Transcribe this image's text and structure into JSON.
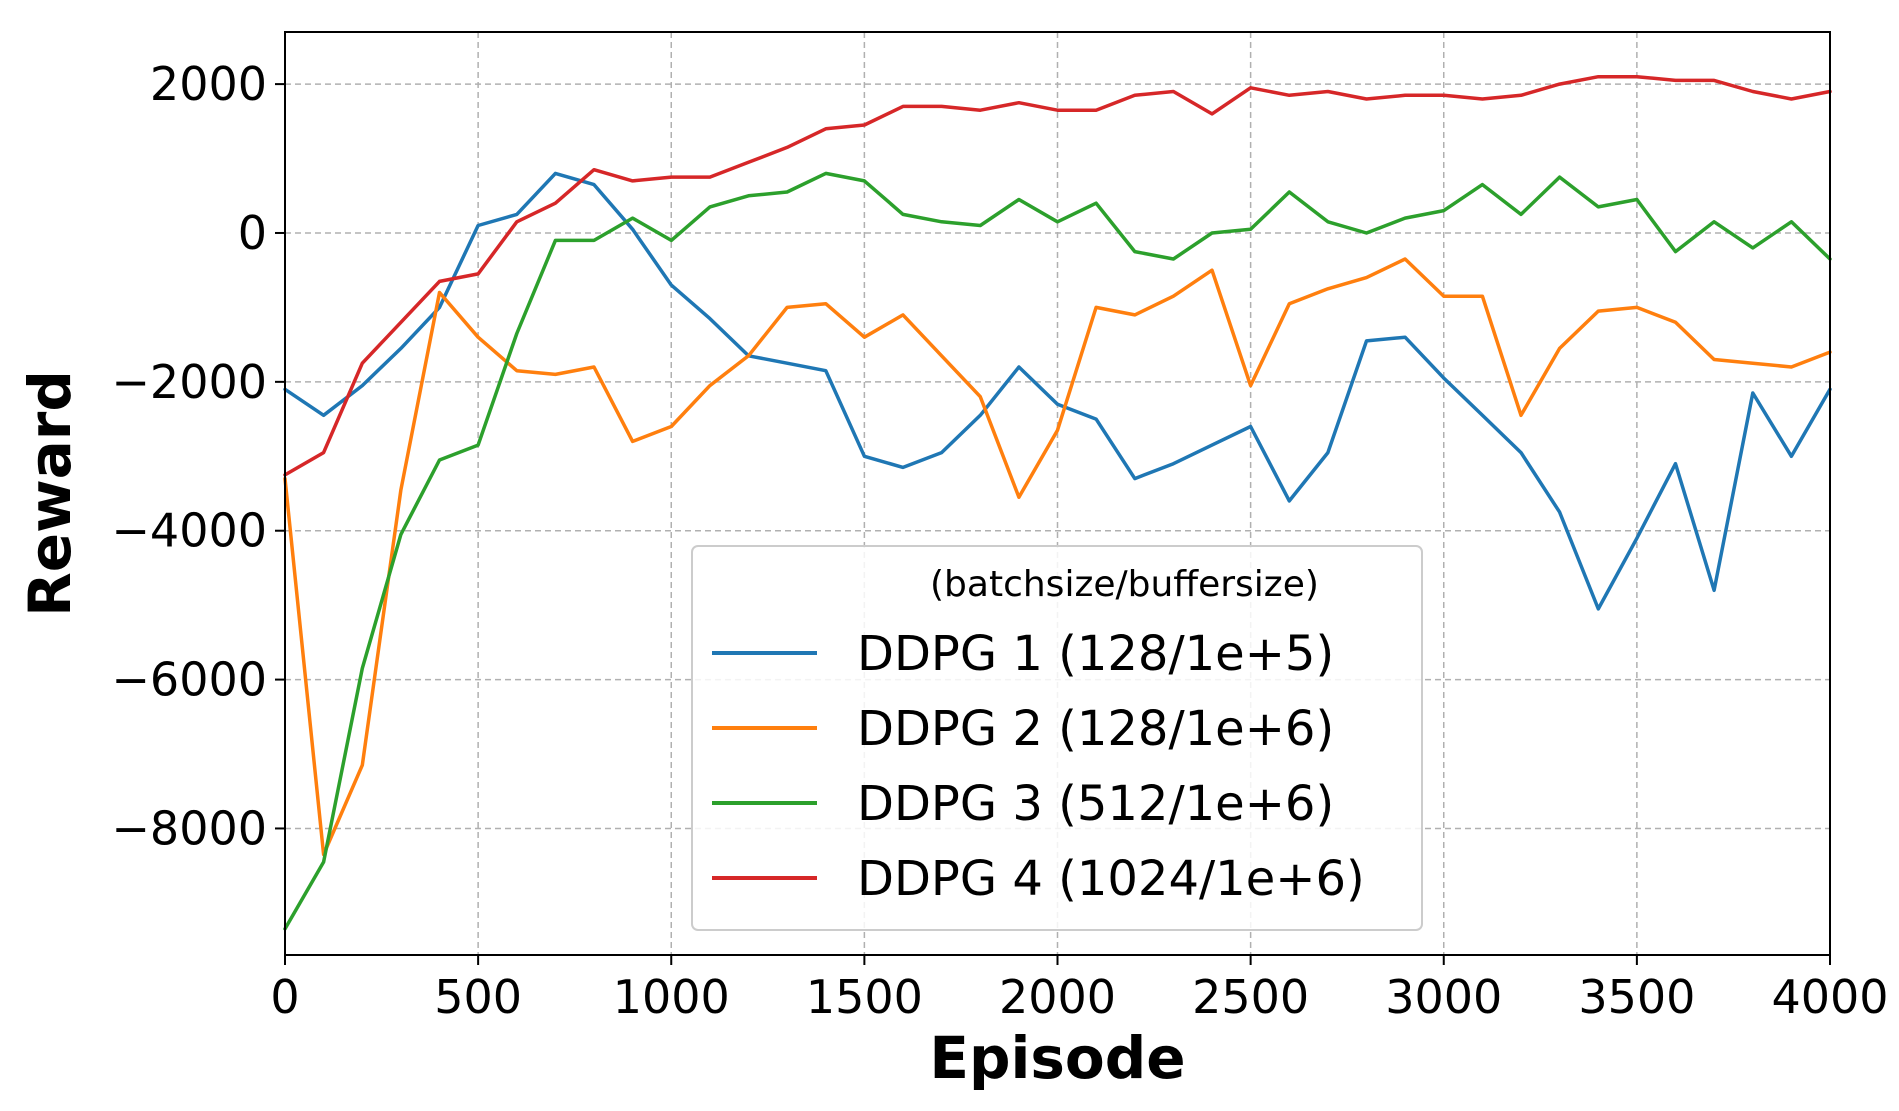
{
  "chart_data": {
    "type": "line",
    "title": "",
    "xlabel": "Episode",
    "ylabel": "Reward",
    "xlim": [
      0,
      4000
    ],
    "ylim": [
      -9700,
      2700
    ],
    "grid": true,
    "x_ticks": [
      0,
      500,
      1000,
      1500,
      2000,
      2500,
      3000,
      3500,
      4000
    ],
    "y_ticks": [
      -8000,
      -6000,
      -4000,
      -2000,
      0,
      2000
    ],
    "x_tick_labels": [
      "0",
      "500",
      "1000",
      "1500",
      "2000",
      "2500",
      "3000",
      "3500",
      "4000"
    ],
    "y_tick_labels": [
      "−8000",
      "−6000",
      "−4000",
      "−2000",
      "0",
      "2000"
    ],
    "legend": {
      "title": "(batchsize/buffersize)",
      "position": "lower-center"
    },
    "x": [
      0,
      100,
      200,
      300,
      400,
      500,
      600,
      700,
      800,
      900,
      1000,
      1100,
      1200,
      1300,
      1400,
      1500,
      1600,
      1700,
      1800,
      1900,
      2000,
      2100,
      2200,
      2300,
      2400,
      2500,
      2600,
      2700,
      2800,
      2900,
      3000,
      3100,
      3200,
      3300,
      3400,
      3500,
      3600,
      3700,
      3800,
      3900,
      4000
    ],
    "series": [
      {
        "name": "DDPG 1 (128/1e+5)",
        "color": "#1f77b4",
        "values": [
          -2100,
          -2450,
          -2050,
          -1550,
          -1000,
          100,
          250,
          800,
          650,
          50,
          -700,
          -1150,
          -1650,
          -1750,
          -1850,
          -3000,
          -3150,
          -2950,
          -2450,
          -1800,
          -2300,
          -2500,
          -3300,
          -3100,
          -2850,
          -2600,
          -3600,
          -2950,
          -1450,
          -1400,
          -1950,
          -2450,
          -2950,
          -3750,
          -5050,
          -4100,
          -3100,
          -4800,
          -2150,
          -3000,
          -2100
        ]
      },
      {
        "name": "DDPG 2 (128/1e+6)",
        "color": "#ff7f0e",
        "values": [
          -3300,
          -8350,
          -7150,
          -3450,
          -800,
          -1400,
          -1850,
          -1900,
          -1800,
          -2800,
          -2600,
          -2050,
          -1650,
          -1000,
          -950,
          -1400,
          -1100,
          -1650,
          -2200,
          -3550,
          -2650,
          -1000,
          -1100,
          -850,
          -500,
          -2050,
          -950,
          -750,
          -600,
          -350,
          -850,
          -850,
          -2450,
          -1550,
          -1050,
          -1000,
          -1200,
          -1700,
          -1750,
          -1800,
          -1600
        ]
      },
      {
        "name": "DDPG 3 (512/1e+6)",
        "color": "#2ca02c",
        "values": [
          -9350,
          -8450,
          -5850,
          -4050,
          -3050,
          -2850,
          -1350,
          -100,
          -100,
          200,
          -100,
          350,
          500,
          550,
          800,
          700,
          250,
          150,
          100,
          450,
          150,
          400,
          -250,
          -350,
          0,
          50,
          550,
          150,
          0,
          200,
          300,
          650,
          250,
          750,
          350,
          450,
          -250,
          150,
          -200,
          150,
          -350
        ]
      },
      {
        "name": "DDPG 4 (1024/1e+6)",
        "color": "#d62728",
        "values": [
          -3250,
          -2950,
          -1750,
          -1200,
          -650,
          -550,
          150,
          400,
          850,
          700,
          750,
          750,
          950,
          1150,
          1400,
          1450,
          1700,
          1700,
          1650,
          1750,
          1650,
          1650,
          1850,
          1900,
          1600,
          1950,
          1850,
          1900,
          1800,
          1850,
          1850,
          1800,
          1850,
          2000,
          2100,
          2100,
          2050,
          2050,
          1900,
          1800,
          1900
        ]
      }
    ]
  }
}
